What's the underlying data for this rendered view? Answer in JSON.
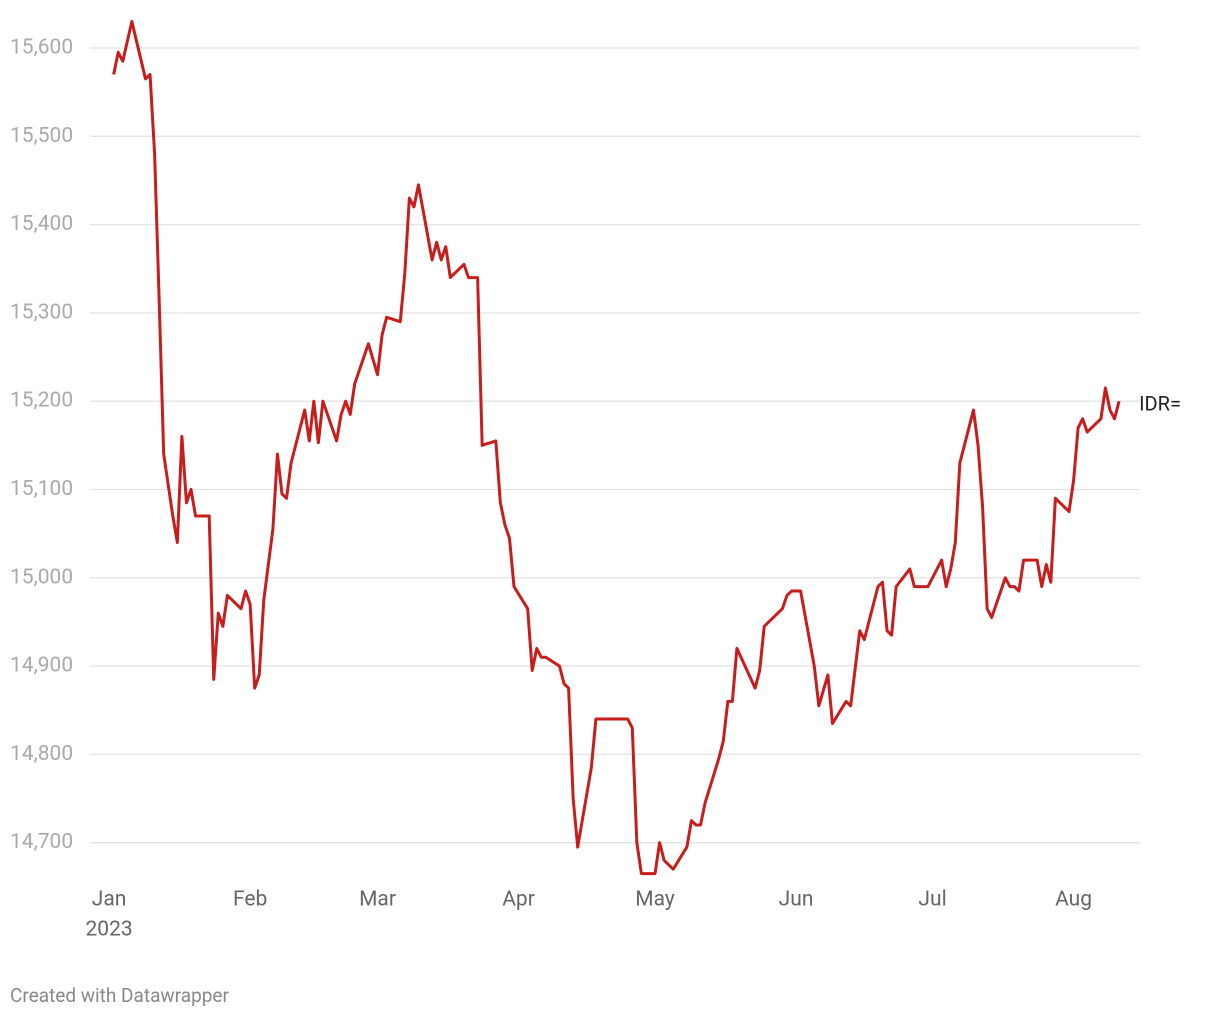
{
  "chart_data": {
    "type": "line",
    "x": [
      1,
      2,
      3,
      5,
      8,
      9,
      10,
      11,
      12,
      14,
      15,
      16,
      17,
      18,
      19,
      22,
      23,
      24,
      25,
      26,
      29,
      30,
      31,
      32,
      33,
      34,
      36,
      37,
      38,
      39,
      40,
      43,
      44,
      45,
      46,
      47,
      50,
      51,
      52,
      53,
      54,
      57,
      59,
      60,
      61,
      64,
      65,
      66,
      67,
      68,
      71,
      72,
      73,
      74,
      75,
      78,
      79,
      81,
      82,
      85,
      86,
      87,
      88,
      89,
      92,
      93,
      94,
      95,
      96,
      99,
      100,
      101,
      102,
      103,
      106,
      107,
      114,
      115,
      116,
      117,
      120,
      121,
      122,
      124,
      127,
      128,
      129,
      130,
      131,
      134,
      135,
      136,
      137,
      138,
      142,
      143,
      144,
      148,
      149,
      150,
      152,
      155,
      156,
      158,
      159,
      162,
      163,
      165,
      166,
      169,
      170,
      171,
      172,
      173,
      176,
      177,
      180,
      183,
      184,
      185,
      186,
      187,
      190,
      191,
      192,
      193,
      194,
      197,
      198,
      199,
      200,
      201,
      204,
      205,
      206,
      207,
      208,
      211,
      212,
      213,
      214,
      215,
      218,
      219,
      220,
      221,
      222
    ],
    "series": [
      {
        "name": "IDR=",
        "color": "#c71e1d",
        "values": [
          15570,
          15595,
          15585,
          15630,
          15565,
          15570,
          15480,
          15315,
          15140,
          15070,
          15040,
          15160,
          15085,
          15100,
          15070,
          15070,
          14885,
          14960,
          14945,
          14980,
          14965,
          14985,
          14970,
          14875,
          14890,
          14975,
          15055,
          15140,
          15095,
          15090,
          15130,
          15190,
          15155,
          15200,
          15153,
          15200,
          15155,
          15185,
          15200,
          15185,
          15220,
          15265,
          15230,
          15275,
          15295,
          15290,
          15345,
          15430,
          15420,
          15445,
          15360,
          15380,
          15360,
          15375,
          15340,
          15355,
          15340,
          15340,
          15150,
          15155,
          15085,
          15060,
          15045,
          14990,
          14965,
          14895,
          14920,
          14910,
          14910,
          14900,
          14880,
          14875,
          14750,
          14695,
          14785,
          14840,
          14840,
          14830,
          14700,
          14665,
          14665,
          14700,
          14680,
          14670,
          14695,
          14725,
          14720,
          14720,
          14745,
          14795,
          14815,
          14860,
          14860,
          14920,
          14875,
          14895,
          14945,
          14965,
          14980,
          14985,
          14985,
          14900,
          14855,
          14890,
          14835,
          14860,
          14855,
          14940,
          14930,
          14990,
          14995,
          14940,
          14935,
          14990,
          15010,
          14990,
          14990,
          15020,
          14990,
          15010,
          15040,
          15130,
          15190,
          15150,
          15080,
          14965,
          14955,
          15000,
          14990,
          14990,
          14985,
          15020,
          15020,
          14990,
          15015,
          14995,
          15090,
          15075,
          15110,
          15170,
          15180,
          15165,
          15180,
          15215,
          15190,
          15180,
          15200
        ]
      }
    ],
    "xlim": [
      -4.2,
      226.6
    ],
    "xticks": [
      {
        "value": 0,
        "label": "Jan"
      },
      {
        "value": 31,
        "label": "Feb"
      },
      {
        "value": 59,
        "label": "Mar"
      },
      {
        "value": 90,
        "label": "Apr"
      },
      {
        "value": 120,
        "label": "May"
      },
      {
        "value": 151,
        "label": "Jun"
      },
      {
        "value": 181,
        "label": "Jul"
      },
      {
        "value": 212,
        "label": "Aug"
      }
    ],
    "x_year_label": "2023",
    "ylim": [
      14660,
      15630
    ],
    "yticks": [
      {
        "value": 14700,
        "label": "14,700"
      },
      {
        "value": 14800,
        "label": "14,800"
      },
      {
        "value": 14900,
        "label": "14,900"
      },
      {
        "value": 15000,
        "label": "15,000"
      },
      {
        "value": 15100,
        "label": "15,100"
      },
      {
        "value": 15200,
        "label": "15,200"
      },
      {
        "value": 15300,
        "label": "15,300"
      },
      {
        "value": 15400,
        "label": "15,400"
      },
      {
        "value": 15500,
        "label": "15,500"
      },
      {
        "value": 15600,
        "label": "15,600"
      }
    ],
    "grid": true,
    "credit": "Created with Datawrapper"
  }
}
